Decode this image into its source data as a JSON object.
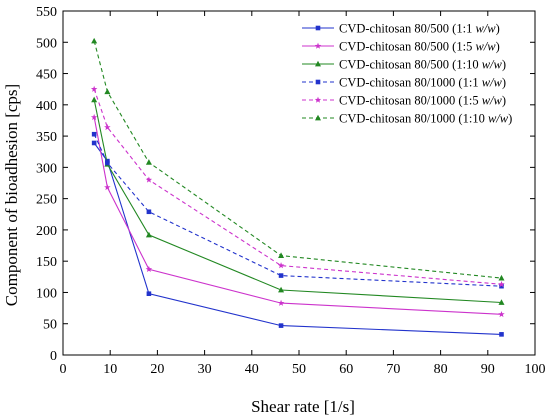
{
  "chart_data": {
    "type": "line",
    "xlabel": "Shear rate [1/s]",
    "ylabel": "Component of bioadhesion [cps]",
    "xlim": [
      0,
      100
    ],
    "ylim": [
      0,
      550
    ],
    "xticks": [
      0,
      10,
      20,
      30,
      40,
      50,
      60,
      70,
      80,
      90,
      100
    ],
    "yticks": [
      0,
      50,
      100,
      150,
      200,
      250,
      300,
      350,
      400,
      450,
      500,
      550
    ],
    "grid": false,
    "legend_position": "top-right",
    "series": [
      {
        "name": "CVD-chitosan 80/500 (1:1 w/w)",
        "color": "#2233cc",
        "dash": "solid",
        "marker": "square",
        "x": [
          6.6,
          9.4,
          18.2,
          46.2,
          92.9
        ],
        "y": [
          339,
          310,
          98,
          47,
          33
        ]
      },
      {
        "name": "CVD-chitosan 80/500 (1:5 w/w)",
        "color": "#cc33cc",
        "dash": "solid",
        "marker": "star",
        "x": [
          6.6,
          9.4,
          18.2,
          46.2,
          92.9
        ],
        "y": [
          380,
          268,
          137,
          83,
          65
        ]
      },
      {
        "name": "CVD-chitosan 80/500 (1:10 w/w)",
        "color": "#228822",
        "dash": "solid",
        "marker": "triangle",
        "x": [
          6.6,
          9.4,
          18.2,
          46.2,
          92.9
        ],
        "y": [
          408,
          305,
          192,
          104,
          84
        ]
      },
      {
        "name": "CVD-chitosan 80/1000 (1:1 w/w)",
        "color": "#2233cc",
        "dash": "dashed",
        "marker": "square",
        "x": [
          6.6,
          9.4,
          18.2,
          46.2,
          92.9
        ],
        "y": [
          353,
          307,
          229,
          127,
          110
        ]
      },
      {
        "name": "CVD-chitosan 80/1000 (1:5 w/w)",
        "color": "#cc33cc",
        "dash": "dashed",
        "marker": "star",
        "x": [
          6.6,
          9.4,
          18.2,
          46.2,
          92.9
        ],
        "y": [
          425,
          364,
          280,
          143,
          113
        ]
      },
      {
        "name": "CVD-chitosan 80/1000 (1:10 w/w)",
        "color": "#228822",
        "dash": "dashed",
        "marker": "triangle",
        "x": [
          6.6,
          9.4,
          18.2,
          46.2,
          92.9
        ],
        "y": [
          502,
          421,
          308,
          159,
          123
        ]
      }
    ]
  }
}
